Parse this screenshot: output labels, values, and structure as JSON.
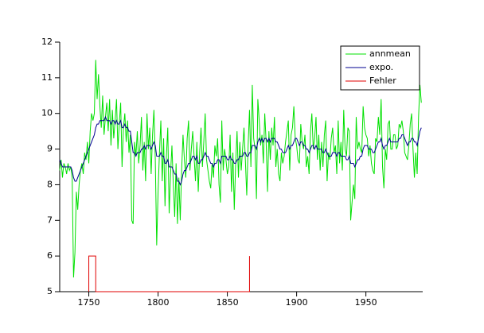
{
  "chart_data": {
    "type": "line",
    "x": [
      1729,
      1730,
      1731,
      1732,
      1733,
      1734,
      1735,
      1736,
      1737,
      1738,
      1739,
      1740,
      1741,
      1742,
      1743,
      1744,
      1745,
      1746,
      1747,
      1748,
      1749,
      1750,
      1751,
      1752,
      1753,
      1754,
      1755,
      1756,
      1757,
      1758,
      1759,
      1760,
      1761,
      1762,
      1763,
      1764,
      1765,
      1766,
      1767,
      1768,
      1769,
      1770,
      1771,
      1772,
      1773,
      1774,
      1775,
      1776,
      1777,
      1778,
      1779,
      1780,
      1781,
      1782,
      1783,
      1784,
      1785,
      1786,
      1787,
      1788,
      1789,
      1790,
      1791,
      1792,
      1793,
      1794,
      1795,
      1796,
      1797,
      1798,
      1799,
      1800,
      1801,
      1802,
      1803,
      1804,
      1805,
      1806,
      1807,
      1808,
      1809,
      1810,
      1811,
      1812,
      1813,
      1814,
      1815,
      1816,
      1817,
      1818,
      1819,
      1820,
      1821,
      1822,
      1823,
      1824,
      1825,
      1826,
      1827,
      1828,
      1829,
      1830,
      1831,
      1832,
      1833,
      1834,
      1835,
      1836,
      1837,
      1838,
      1839,
      1840,
      1841,
      1842,
      1843,
      1844,
      1845,
      1846,
      1847,
      1848,
      1849,
      1850,
      1851,
      1852,
      1853,
      1854,
      1855,
      1856,
      1857,
      1858,
      1859,
      1860,
      1861,
      1862,
      1863,
      1864,
      1865,
      1866,
      1867,
      1868,
      1869,
      1870,
      1871,
      1872,
      1873,
      1874,
      1875,
      1876,
      1877,
      1878,
      1879,
      1880,
      1881,
      1882,
      1883,
      1884,
      1885,
      1886,
      1887,
      1888,
      1889,
      1890,
      1891,
      1892,
      1893,
      1894,
      1895,
      1896,
      1897,
      1898,
      1899,
      1900,
      1901,
      1902,
      1903,
      1904,
      1905,
      1906,
      1907,
      1908,
      1909,
      1910,
      1911,
      1912,
      1913,
      1914,
      1915,
      1916,
      1917,
      1918,
      1919,
      1920,
      1921,
      1922,
      1923,
      1924,
      1925,
      1926,
      1927,
      1928,
      1929,
      1930,
      1931,
      1932,
      1933,
      1934,
      1935,
      1936,
      1937,
      1938,
      1939,
      1940,
      1941,
      1942,
      1943,
      1944,
      1945,
      1946,
      1947,
      1948,
      1949,
      1950,
      1951,
      1952,
      1953,
      1954,
      1955,
      1956,
      1957,
      1958,
      1959,
      1960,
      1961,
      1962,
      1963,
      1964,
      1965,
      1966,
      1967,
      1968,
      1969,
      1970,
      1971,
      1972,
      1973,
      1974,
      1975,
      1976,
      1977,
      1978,
      1979,
      1980,
      1981,
      1982,
      1983,
      1984,
      1985,
      1986,
      1987,
      1988,
      1989,
      1990
    ],
    "series": [
      {
        "name": "annmean",
        "color": "#00e000",
        "values": [
          8.4,
          8.7,
          8.2,
          8.6,
          8.5,
          8.3,
          8.6,
          8.4,
          8.5,
          8.2,
          5.4,
          6.1,
          7.8,
          7.3,
          8.0,
          8.4,
          8.6,
          8.3,
          8.9,
          8.7,
          9.2,
          8.6,
          9.5,
          10.0,
          9.8,
          10.0,
          11.5,
          10.4,
          11.1,
          10.2,
          9.6,
          10.5,
          9.4,
          9.9,
          10.3,
          9.5,
          10.4,
          9.1,
          10.1,
          9.3,
          9.8,
          10.4,
          9.0,
          9.7,
          10.3,
          8.5,
          9.6,
          10.0,
          9.2,
          9.8,
          8.9,
          9.4,
          7.0,
          6.9,
          9.2,
          8.8,
          9.5,
          8.6,
          9.1,
          9.9,
          8.4,
          9.2,
          8.1,
          10.0,
          9.0,
          9.6,
          8.3,
          9.4,
          10.1,
          8.7,
          6.3,
          7.8,
          8.9,
          9.8,
          8.1,
          9.3,
          7.4,
          8.8,
          9.6,
          7.2,
          8.3,
          9.1,
          8.0,
          7.1,
          8.6,
          6.9,
          8.2,
          7.0,
          8.4,
          9.4,
          8.7,
          8.2,
          9.3,
          9.8,
          8.4,
          9.0,
          9.5,
          8.8,
          8.1,
          9.2,
          7.8,
          8.9,
          9.6,
          8.5,
          9.2,
          10.0,
          8.7,
          8.4,
          8.1,
          7.9,
          8.6,
          8.2,
          9.1,
          8.8,
          9.3,
          8.0,
          7.5,
          9.8,
          8.4,
          9.0,
          8.7,
          8.3,
          8.5,
          9.4,
          7.8,
          8.9,
          7.3,
          8.6,
          9.5,
          8.2,
          9.2,
          8.4,
          9.0,
          9.6,
          8.7,
          7.7,
          9.1,
          10.1,
          8.5,
          10.8,
          9.3,
          9.0,
          7.6,
          10.4,
          9.8,
          9.1,
          9.4,
          8.6,
          10.0,
          9.2,
          7.8,
          9.5,
          8.7,
          9.6,
          9.1,
          9.9,
          8.5,
          9.0,
          8.3,
          8.1,
          8.9,
          8.6,
          8.8,
          9.2,
          9.5,
          9.8,
          8.4,
          9.4,
          9.6,
          10.2,
          9.3,
          9.1,
          8.7,
          8.6,
          9.7,
          9.2,
          9.0,
          9.4,
          8.5,
          8.8,
          8.3,
          9.5,
          10.0,
          9.0,
          9.3,
          9.9,
          8.7,
          9.4,
          8.4,
          9.2,
          8.5,
          9.4,
          9.8,
          8.1,
          8.9,
          8.7,
          9.3,
          9.6,
          8.9,
          9.1,
          8.3,
          9.8,
          8.6,
          9.2,
          8.4,
          10.1,
          9.0,
          8.8,
          9.6,
          9.5,
          7.0,
          7.5,
          8.0,
          7.6,
          9.9,
          9.0,
          9.2,
          9.0,
          8.9,
          10.2,
          9.6,
          9.4,
          9.3,
          8.8,
          9.1,
          8.6,
          8.4,
          8.3,
          9.3,
          9.2,
          9.9,
          9.4,
          10.4,
          8.5,
          7.9,
          9.0,
          8.7,
          9.7,
          9.8,
          9.0,
          9.0,
          9.4,
          9.4,
          9.0,
          9.1,
          9.7,
          9.6,
          9.8,
          9.5,
          8.9,
          8.8,
          8.7,
          9.1,
          9.7,
          10.0,
          9.0,
          8.2,
          8.9,
          8.3,
          9.9,
          10.8,
          10.3
        ]
      },
      {
        "name": "expo.",
        "color": "#000090",
        "values": [
          8.7,
          8.6,
          8.5,
          8.5,
          8.5,
          8.5,
          8.5,
          8.5,
          8.5,
          8.4,
          8.2,
          8.1,
          8.1,
          8.2,
          8.3,
          8.4,
          8.5,
          8.6,
          8.7,
          8.8,
          8.9,
          9.0,
          9.1,
          9.2,
          9.3,
          9.4,
          9.6,
          9.7,
          9.7,
          9.8,
          9.8,
          9.8,
          9.8,
          9.9,
          9.8,
          9.8,
          9.8,
          9.7,
          9.8,
          9.8,
          9.7,
          9.8,
          9.7,
          9.7,
          9.8,
          9.6,
          9.6,
          9.7,
          9.6,
          9.6,
          9.5,
          9.5,
          9.2,
          8.9,
          8.9,
          8.8,
          8.9,
          8.9,
          8.9,
          9.0,
          9.0,
          9.1,
          9.0,
          9.1,
          9.1,
          9.1,
          9.0,
          9.1,
          9.2,
          9.1,
          8.8,
          8.8,
          8.8,
          8.9,
          8.8,
          8.8,
          8.6,
          8.6,
          8.7,
          8.5,
          8.5,
          8.5,
          8.4,
          8.3,
          8.3,
          8.1,
          8.1,
          8.0,
          8.1,
          8.3,
          8.4,
          8.4,
          8.5,
          8.6,
          8.6,
          8.7,
          8.8,
          8.8,
          8.7,
          8.8,
          8.6,
          8.6,
          8.7,
          8.7,
          8.8,
          8.9,
          8.8,
          8.8,
          8.7,
          8.6,
          8.6,
          8.5,
          8.6,
          8.6,
          8.7,
          8.7,
          8.6,
          8.8,
          8.8,
          8.8,
          8.8,
          8.7,
          8.7,
          8.8,
          8.7,
          8.7,
          8.6,
          8.6,
          8.7,
          8.7,
          8.8,
          8.8,
          8.8,
          8.9,
          8.9,
          8.8,
          8.8,
          8.9,
          8.9,
          9.1,
          9.1,
          9.1,
          9.0,
          9.2,
          9.3,
          9.2,
          9.3,
          9.2,
          9.3,
          9.3,
          9.2,
          9.3,
          9.2,
          9.3,
          9.3,
          9.3,
          9.2,
          9.2,
          9.1,
          9.0,
          9.0,
          8.9,
          8.9,
          8.9,
          9.0,
          9.1,
          9.0,
          9.1,
          9.1,
          9.2,
          9.3,
          9.3,
          9.2,
          9.1,
          9.2,
          9.2,
          9.1,
          9.1,
          9.0,
          9.0,
          8.9,
          9.0,
          9.1,
          9.1,
          9.0,
          9.1,
          9.0,
          9.0,
          9.0,
          9.0,
          8.9,
          8.9,
          9.0,
          8.9,
          8.8,
          8.8,
          8.8,
          8.9,
          8.9,
          8.9,
          8.8,
          8.9,
          8.9,
          8.8,
          8.8,
          8.8,
          8.8,
          8.7,
          8.7,
          8.8,
          8.6,
          8.6,
          8.6,
          8.5,
          8.6,
          8.7,
          8.7,
          8.8,
          8.8,
          9.0,
          9.1,
          9.1,
          9.1,
          9.0,
          9.0,
          9.0,
          8.9,
          8.9,
          9.0,
          9.1,
          9.2,
          9.2,
          9.3,
          9.1,
          9.0,
          9.1,
          9.1,
          9.2,
          9.3,
          9.2,
          9.2,
          9.2,
          9.2,
          9.2,
          9.2,
          9.3,
          9.3,
          9.4,
          9.4,
          9.3,
          9.2,
          9.1,
          9.2,
          9.2,
          9.3,
          9.3,
          9.2,
          9.2,
          9.1,
          9.3,
          9.5,
          9.6
        ]
      },
      {
        "name": "Fehler",
        "color": "#e00000",
        "x": [
          1750,
          1750,
          1755,
          1755,
          1866,
          1866,
          1866
        ],
        "values": [
          5,
          6,
          6,
          5,
          5,
          6,
          5
        ]
      }
    ],
    "xlim": [
      1729,
      1991
    ],
    "xticks": [
      1750,
      1800,
      1850,
      1900,
      1950
    ],
    "ylim": [
      5,
      12
    ],
    "yticks": [
      5,
      6,
      7,
      8,
      9,
      10,
      11,
      12
    ],
    "legend": "upper-right"
  }
}
